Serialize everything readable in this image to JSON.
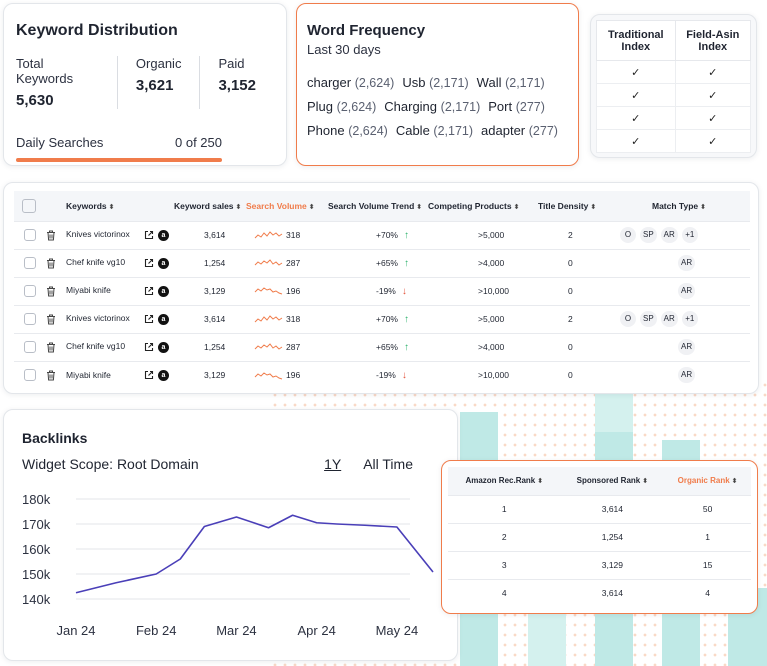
{
  "keyword_distribution": {
    "title": "Keyword Distribution",
    "stats": [
      {
        "label": "Total Keywords",
        "value": "5,630"
      },
      {
        "label": "Organic",
        "value": "3,621"
      },
      {
        "label": "Paid",
        "value": "3,152"
      }
    ],
    "daily_label": "Daily Searches",
    "daily_value": "0 of 250",
    "accent": "#f07c4b"
  },
  "word_frequency": {
    "title": "Word Frequency",
    "subtitle": "Last 30 days",
    "rows": [
      [
        {
          "word": "charger",
          "count": "(2,624)"
        },
        {
          "word": "Usb",
          "count": "(2,171)"
        },
        {
          "word": "Wall",
          "count": "(2,171)"
        }
      ],
      [
        {
          "word": "Plug",
          "count": "(2,624)"
        },
        {
          "word": "Charging",
          "count": "(2,171)"
        },
        {
          "word": "Port",
          "count": "(277)"
        }
      ],
      [
        {
          "word": "Phone",
          "count": "(2,624)"
        },
        {
          "word": "Cable",
          "count": "(2,171)"
        },
        {
          "word": "adapter",
          "count": "(277)"
        }
      ]
    ]
  },
  "index_table": {
    "headers": [
      [
        "Traditional",
        "Index"
      ],
      [
        "Field-Asin",
        "Index"
      ]
    ],
    "rows": [
      [
        "✓",
        "✓"
      ],
      [
        "✓",
        "✓"
      ],
      [
        "✓",
        "✓"
      ],
      [
        "✓",
        "✓"
      ]
    ]
  },
  "keywords_table": {
    "columns": [
      "Keywords",
      "Keyword sales",
      "Search Volume",
      "Search Volume Trend",
      "Competing Products",
      "Title Density",
      "Match Type"
    ],
    "sort_glyph": "⬍",
    "amazon_glyph": "a",
    "rows": [
      {
        "keyword": "Knives victorinox",
        "sales": "3,614",
        "volume": "318",
        "trend": "+70%",
        "trend_dir": "up",
        "competing": ">5,000",
        "density": "2",
        "match": [
          "O",
          "SP",
          "AR",
          "+1"
        ]
      },
      {
        "keyword": "Chef knife vg10",
        "sales": "1,254",
        "volume": "287",
        "trend": "+65%",
        "trend_dir": "up",
        "competing": ">4,000",
        "density": "0",
        "match": [
          "AR"
        ]
      },
      {
        "keyword": "Miyabi knife",
        "sales": "3,129",
        "volume": "196",
        "trend": "-19%",
        "trend_dir": "down",
        "competing": ">10,000",
        "density": "0",
        "match": [
          "AR"
        ]
      },
      {
        "keyword": "Knives victorinox",
        "sales": "3,614",
        "volume": "318",
        "trend": "+70%",
        "trend_dir": "up",
        "competing": ">5,000",
        "density": "2",
        "match": [
          "O",
          "SP",
          "AR",
          "+1"
        ]
      },
      {
        "keyword": "Chef knife vg10",
        "sales": "1,254",
        "volume": "287",
        "trend": "+65%",
        "trend_dir": "up",
        "competing": ">4,000",
        "density": "0",
        "match": [
          "AR"
        ]
      },
      {
        "keyword": "Miyabi knife",
        "sales": "3,129",
        "volume": "196",
        "trend": "-19%",
        "trend_dir": "down",
        "competing": ">10,000",
        "density": "0",
        "match": [
          "AR"
        ]
      }
    ],
    "up_arrow": "↑",
    "down_arrow": "↓"
  },
  "backlinks": {
    "title": "Backlinks",
    "scope": "Widget Scope: Root Domain",
    "ranges": [
      "1Y",
      "All Time"
    ],
    "active_range": "1Y",
    "line_color": "#4a3fb8"
  },
  "rank_table": {
    "columns": [
      "Amazon Rec.Rank",
      "Sponsored Rank",
      "Organic Rank"
    ],
    "rows": [
      [
        "1",
        "3,614",
        "50"
      ],
      [
        "2",
        "1,254",
        "1"
      ],
      [
        "3",
        "3,129",
        "15"
      ],
      [
        "4",
        "3,614",
        "4"
      ]
    ]
  },
  "chart_data": {
    "type": "line",
    "title": "Backlinks",
    "xlabel": "",
    "ylabel": "",
    "x_tick_labels": [
      "Jan 24",
      "Feb 24",
      "Mar 24",
      "Apr 24",
      "May 24"
    ],
    "y_tick_labels": [
      "180k",
      "170k",
      "160k",
      "150k",
      "140k"
    ],
    "ylim": [
      140000,
      180000
    ],
    "x": [
      0,
      0.5,
      1,
      1.3,
      1.6,
      2,
      2.4,
      2.7,
      3,
      3.25,
      3.6,
      4,
      4.45
    ],
    "series": [
      {
        "name": "Backlinks",
        "values": [
          142500,
          146500,
          150000,
          156000,
          169000,
          172800,
          168500,
          173500,
          170500,
          170000,
          169500,
          168800,
          150800
        ]
      }
    ],
    "xlim": [
      0,
      4.45
    ],
    "grid": true
  }
}
